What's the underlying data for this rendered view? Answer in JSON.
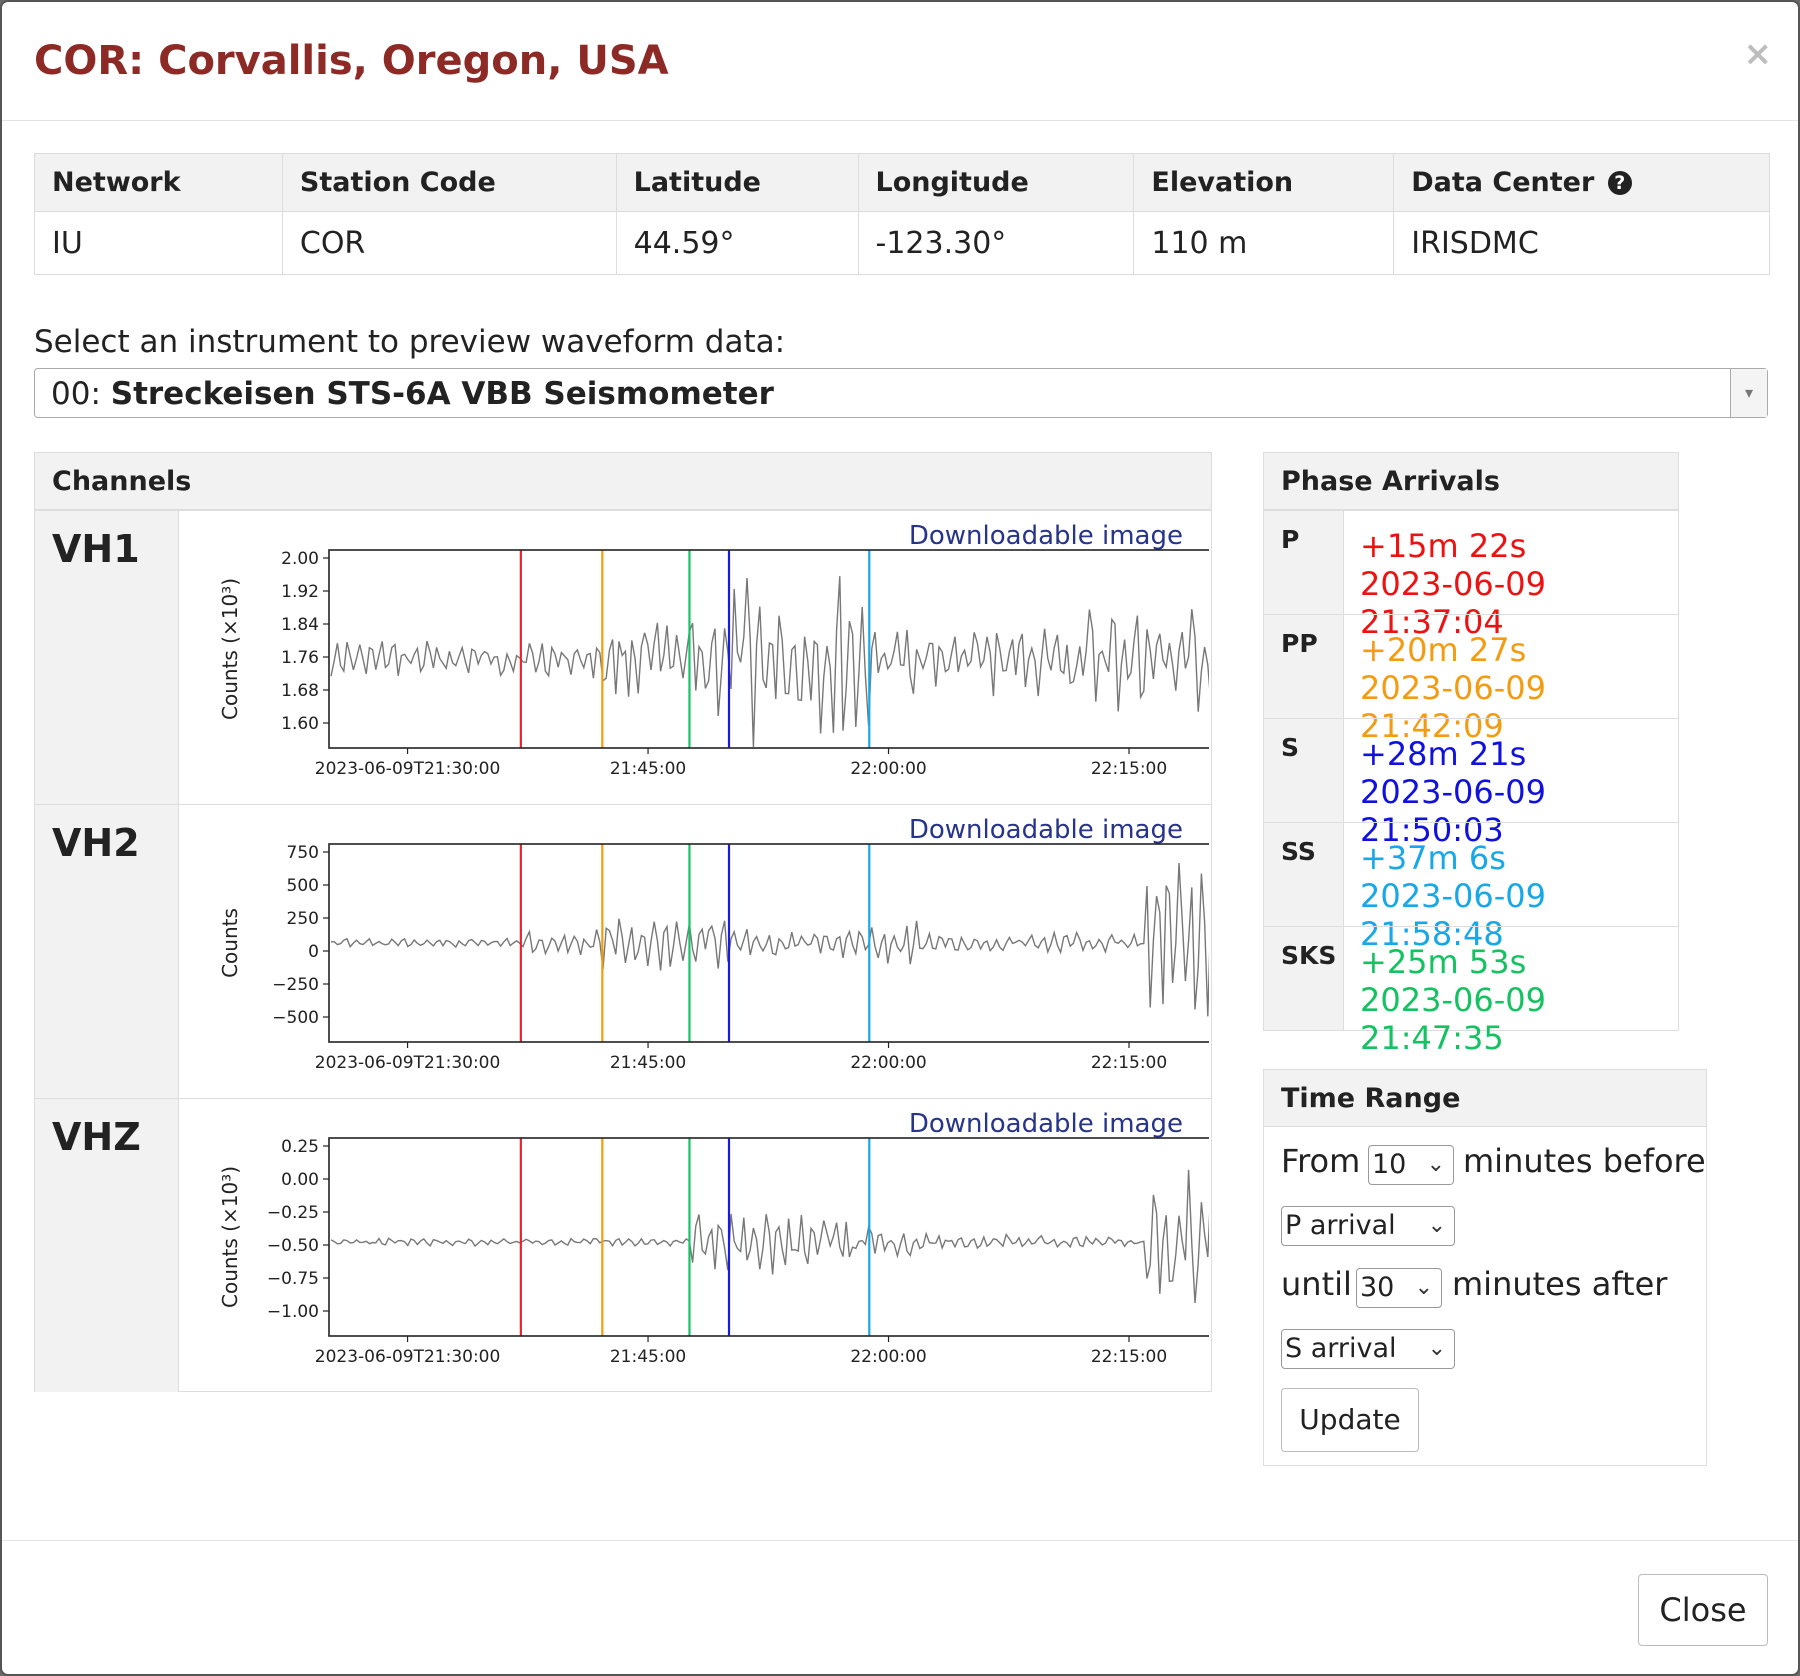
{
  "title": "COR: Corvallis, Oregon, USA",
  "close_x": "×",
  "info_table": {
    "headers": [
      "Network",
      "Station Code",
      "Latitude",
      "Longitude",
      "Elevation",
      "Data Center"
    ],
    "values": [
      "IU",
      "COR",
      "44.59°",
      "-123.30°",
      "110 m",
      "IRISDMC"
    ],
    "help_icon": "?"
  },
  "instrument": {
    "label": "Select an instrument to preview waveform data:",
    "prefix": "00: ",
    "name": "Streckeisen STS-6A VBB Seismometer",
    "caret": "▾"
  },
  "channels": {
    "heading": "Channels",
    "download_label": "Downloadable image",
    "x_ticks": [
      "2023-06-09T21:30:00",
      "21:45:00",
      "22:00:00",
      "22:15:00"
    ],
    "items": [
      {
        "name": "VH1",
        "ylabel": "Counts (×10³)",
        "yticks": [
          "2.00",
          "1.92",
          "1.84",
          "1.76",
          "1.68",
          "1.60"
        ],
        "ylim": [
          1.6,
          2.0
        ]
      },
      {
        "name": "VH2",
        "ylabel": "Counts",
        "yticks": [
          "750",
          "500",
          "250",
          "0",
          "−250",
          "−500"
        ],
        "ylim": [
          -500,
          750
        ]
      },
      {
        "name": "VHZ",
        "ylabel": "Counts (×10³)",
        "yticks": [
          "0.25",
          "0.00",
          "−0.25",
          "−0.50",
          "−0.75",
          "−1.00"
        ],
        "ylim": [
          -1.0,
          0.25
        ]
      }
    ],
    "phase_lines": [
      {
        "phase": "P",
        "time": "21:37:04",
        "color": "#e8262a"
      },
      {
        "phase": "PP",
        "time": "21:42:09",
        "color": "#f39c12"
      },
      {
        "phase": "SKS",
        "time": "21:47:35",
        "color": "#17c266"
      },
      {
        "phase": "S",
        "time": "21:50:03",
        "color": "#1a1ae0"
      },
      {
        "phase": "SS",
        "time": "21:58:48",
        "color": "#16a8e8"
      }
    ]
  },
  "phase_arrivals": {
    "heading": "Phase Arrivals",
    "rows": [
      {
        "phase": "P",
        "offset": "+15m 22s",
        "datetime": "2023-06-09 21:37:04",
        "color": "#ee1111"
      },
      {
        "phase": "PP",
        "offset": "+20m 27s",
        "datetime": "2023-06-09 21:42:09",
        "color": "#f39c12"
      },
      {
        "phase": "S",
        "offset": "+28m 21s",
        "datetime": "2023-06-09 21:50:03",
        "color": "#1111dd"
      },
      {
        "phase": "SS",
        "offset": "+37m 6s",
        "datetime": "2023-06-09 21:58:48",
        "color": "#18a8e8"
      },
      {
        "phase": "SKS",
        "offset": "+25m 53s",
        "datetime": "2023-06-09 21:47:35",
        "color": "#14c262"
      }
    ]
  },
  "time_range": {
    "heading": "Time Range",
    "from_label": "From",
    "from_value": "10",
    "before_label": "minutes before",
    "start_phase": "P arrival",
    "until_label": "until",
    "until_value": "30",
    "after_label": "minutes after",
    "end_phase": "S arrival",
    "update_label": "Update",
    "chevron": "⌄"
  },
  "footer": {
    "close_label": "Close"
  }
}
